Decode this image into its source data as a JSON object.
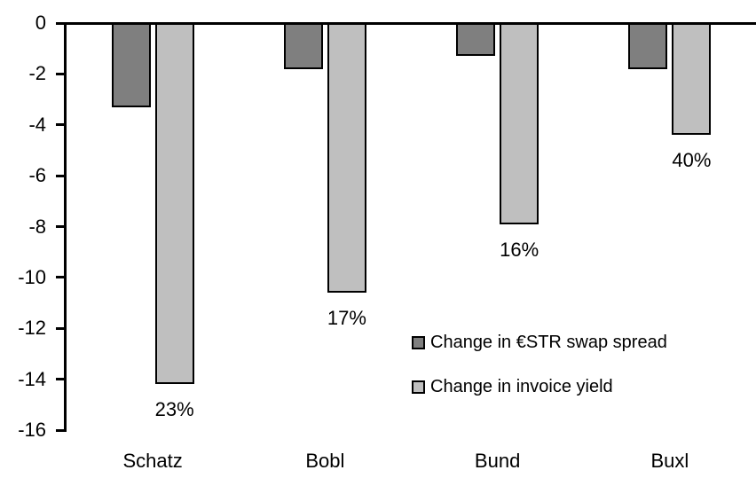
{
  "chart_data": {
    "type": "bar",
    "title": "",
    "xlabel": "",
    "ylabel": "",
    "categories": [
      "Schatz",
      "Bobl",
      "Bund",
      "Buxl"
    ],
    "series": [
      {
        "name": "Change in €STR swap spread",
        "color": "#7f7f7f",
        "values": [
          -3.3,
          -1.8,
          -1.3,
          -1.8
        ]
      },
      {
        "name": "Change in invoice yield",
        "color": "#bfbfbf",
        "values": [
          -14.2,
          -10.6,
          -7.9,
          -4.4
        ],
        "point_labels": [
          "23%",
          "17%",
          "16%",
          "40%"
        ]
      }
    ],
    "y_axis": {
      "min": -16,
      "max": 0,
      "tick_step": 2,
      "ticks": [
        0,
        -2,
        -4,
        -6,
        -8,
        -10,
        -12,
        -14,
        -16
      ]
    },
    "grid": false,
    "bar_border_color": "#000000",
    "legend_position": "inside-center-right"
  }
}
